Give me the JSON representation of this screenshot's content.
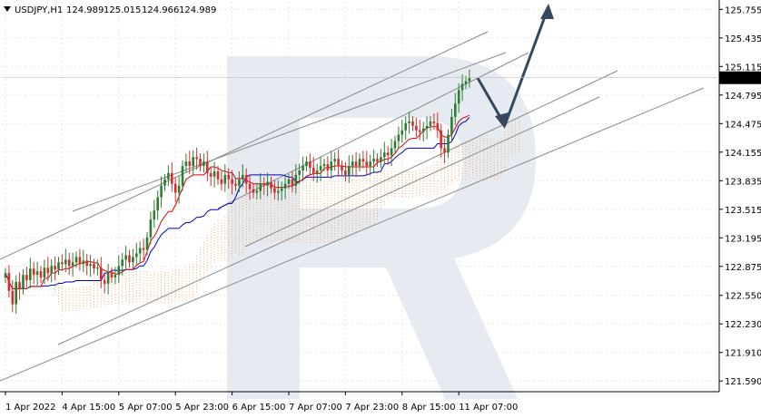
{
  "header": {
    "symbol": "USDJPY,H1",
    "open": "124.989",
    "high": "125.015",
    "low": "124.966",
    "close": "124.989"
  },
  "colors": {
    "candle_up": "#2e7d32",
    "candle_down": "#d32f2f",
    "tenkan": "#e00000",
    "kijun": "#0000c8",
    "cloud": "#f0a050",
    "trendline": "#8a8a8a",
    "forecast_arrow": "#34495e",
    "watermark": "#dde4ee",
    "price_box": "#000000"
  },
  "chart_data": {
    "type": "candlestick",
    "symbol": "USDJPY",
    "timeframe": "H1",
    "ylim": [
      121.47,
      125.84
    ],
    "y_ticks": [
      "125.755",
      "125.435",
      "125.115",
      "124.795",
      "124.475",
      "124.155",
      "123.835",
      "123.515",
      "123.195",
      "122.875",
      "122.550",
      "122.230",
      "121.910",
      "121.590"
    ],
    "x_ticks": [
      "1 Apr 2022",
      "4 Apr 15:00",
      "5 Apr 07:00",
      "5 Apr 23:00",
      "6 Apr 15:00",
      "7 Apr 07:00",
      "7 Apr 23:00",
      "8 Apr 15:00",
      "11 Apr 07:00"
    ],
    "x_tick_bar_index": [
      0,
      16,
      32,
      48,
      64,
      80,
      96,
      112,
      128
    ],
    "current_price": "124.989",
    "closes": [
      122.8,
      122.6,
      122.45,
      122.7,
      122.62,
      122.78,
      122.72,
      122.85,
      122.78,
      122.82,
      122.75,
      122.86,
      122.8,
      122.88,
      122.84,
      122.92,
      122.9,
      122.95,
      122.88,
      122.92,
      122.98,
      122.9,
      122.94,
      122.88,
      122.9,
      122.85,
      122.86,
      122.72,
      122.68,
      122.8,
      122.75,
      122.78,
      122.88,
      122.95,
      123.0,
      122.92,
      122.98,
      123.02,
      123.08,
      123.06,
      123.2,
      123.4,
      123.5,
      123.65,
      123.78,
      123.85,
      123.92,
      123.8,
      123.7,
      123.78,
      124.0,
      124.05,
      124.0,
      124.1,
      124.08,
      124.0,
      124.05,
      123.92,
      123.88,
      123.94,
      123.85,
      123.8,
      123.9,
      123.85,
      123.8,
      123.78,
      123.85,
      123.9,
      123.8,
      123.74,
      123.7,
      123.72,
      123.8,
      123.78,
      123.82,
      123.75,
      123.7,
      123.72,
      123.75,
      123.8,
      123.85,
      123.78,
      123.9,
      123.95,
      124.0,
      124.05,
      123.98,
      123.92,
      123.95,
      124.0,
      124.02,
      123.95,
      124.05,
      124.08,
      124.0,
      123.95,
      123.9,
      124.0,
      124.05,
      124.0,
      124.08,
      124.05,
      124.0,
      124.05,
      124.08,
      124.05,
      124.1,
      124.15,
      124.12,
      124.2,
      124.28,
      124.35,
      124.4,
      124.48,
      124.5,
      124.45,
      124.4,
      124.38,
      124.42,
      124.45,
      124.5,
      124.48,
      124.4,
      124.2,
      124.15,
      124.35,
      124.55,
      124.7,
      124.85,
      124.92,
      124.95,
      124.989
    ],
    "annotations": {
      "trendlines": "parallel ascending channel lines",
      "forecast": "pullback toward ~124.60 then rise toward ~125.80"
    }
  }
}
